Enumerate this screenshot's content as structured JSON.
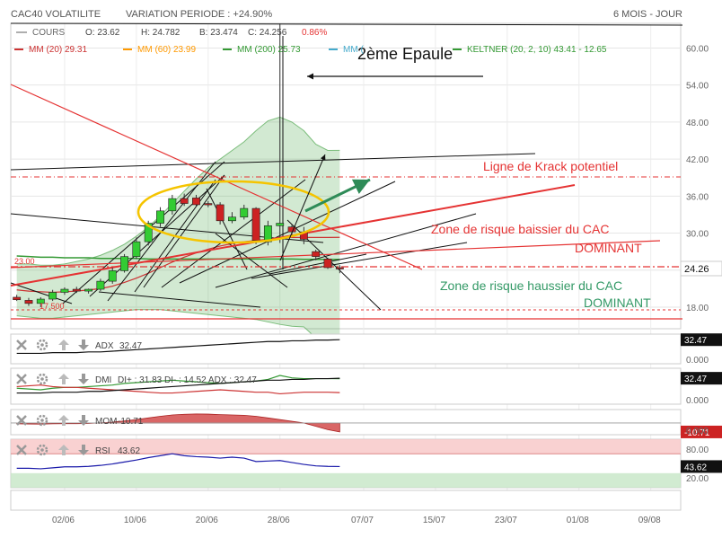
{
  "header": {
    "title": "CAC40 VOLATILITE",
    "variation_label": "VARIATION PERIODE : +24.90%",
    "period": "6 MOIS - JOUR"
  },
  "quote": {
    "cours_label": "COURS",
    "open": "O: 23.62",
    "high": "H: 24.782",
    "low": "B: 23.474",
    "close": "C: 24.256",
    "change": "0.86%"
  },
  "indicators": {
    "mm20": "MM (20) 29.31",
    "mm60": "MM (60) 23.99",
    "mm200": "MM (200) 25.73",
    "mm_extra": "MM (",
    "keltner": "KELTNER (20, 2, 10) 43.41 - 12.65"
  },
  "annotations": {
    "epaule": "2ème Epaule",
    "krack": "Ligne de Krack potentiel",
    "baissier_1": "Zone de risque baissier du CAC",
    "baissier_2": "DOMINANT",
    "haussier_1": "Zone de risque haussier du CAC",
    "haussier_2": "DOMINANT",
    "left_value": "23.00",
    "left_value2": "17.500"
  },
  "colors": {
    "up": "#33cc33",
    "down": "#cc2222",
    "mm20": "#cc3333",
    "mm60": "#ff9900",
    "mm200": "#339933",
    "keltner": "#339933",
    "annotation_red": "#e53333",
    "annotation_green": "#339966",
    "ellipse": "#f5c400"
  },
  "chart_data": [
    {
      "type": "candlestick",
      "name": "main",
      "ylim": [
        14.5,
        64
      ],
      "y_ticks": [
        18,
        24,
        30,
        36,
        42,
        48,
        54,
        60
      ],
      "y_tick_labels": [
        "18.00",
        "24.00",
        "30.00",
        "36.00",
        "42.00",
        "48.00",
        "54.00",
        "60.00"
      ],
      "last_price": 24.26,
      "last_price_label": "24.26",
      "x_labels": [
        "02/06",
        "10/06",
        "20/06",
        "28/06",
        "07/07",
        "15/07",
        "23/07",
        "01/08",
        "09/08"
      ],
      "x_label_index": [
        4,
        10,
        16,
        22,
        29,
        35,
        41,
        47,
        53
      ],
      "n_slots": 56,
      "candles": [
        {
          "o": 19.6,
          "h": 20.0,
          "l": 19.0,
          "c": 19.2
        },
        {
          "o": 19.1,
          "h": 19.5,
          "l": 18.2,
          "c": 18.6
        },
        {
          "o": 18.6,
          "h": 19.6,
          "l": 18.0,
          "c": 19.3
        },
        {
          "o": 19.3,
          "h": 20.8,
          "l": 19.0,
          "c": 20.4
        },
        {
          "o": 20.4,
          "h": 21.2,
          "l": 20.0,
          "c": 20.9
        },
        {
          "o": 20.9,
          "h": 21.3,
          "l": 20.3,
          "c": 20.6
        },
        {
          "o": 20.6,
          "h": 21.0,
          "l": 20.2,
          "c": 20.9
        },
        {
          "o": 20.9,
          "h": 22.6,
          "l": 20.6,
          "c": 22.2
        },
        {
          "o": 22.2,
          "h": 24.4,
          "l": 21.8,
          "c": 23.9
        },
        {
          "o": 23.9,
          "h": 26.6,
          "l": 23.6,
          "c": 26.2
        },
        {
          "o": 26.2,
          "h": 29.3,
          "l": 25.8,
          "c": 28.6
        },
        {
          "o": 28.6,
          "h": 32.0,
          "l": 28.0,
          "c": 31.6
        },
        {
          "o": 31.6,
          "h": 34.2,
          "l": 31.0,
          "c": 33.6
        },
        {
          "o": 33.6,
          "h": 36.2,
          "l": 33.0,
          "c": 35.6
        },
        {
          "o": 35.6,
          "h": 36.4,
          "l": 34.4,
          "c": 34.8
        },
        {
          "o": 35.7,
          "h": 36.2,
          "l": 34.3,
          "c": 34.6
        },
        {
          "o": 34.8,
          "h": 35.2,
          "l": 34.2,
          "c": 34.6
        },
        {
          "o": 34.6,
          "h": 35.0,
          "l": 31.4,
          "c": 32.0
        },
        {
          "o": 32.0,
          "h": 33.4,
          "l": 31.6,
          "c": 32.6
        },
        {
          "o": 32.6,
          "h": 34.6,
          "l": 32.2,
          "c": 34.0
        },
        {
          "o": 34.0,
          "h": 34.2,
          "l": 28.2,
          "c": 28.8
        },
        {
          "o": 28.6,
          "h": 32.0,
          "l": 28.0,
          "c": 31.2
        },
        {
          "o": 31.2,
          "h": 64.0,
          "l": 28.4,
          "c": 31.6
        },
        {
          "o": 31.0,
          "h": 31.4,
          "l": 29.4,
          "c": 30.2
        },
        {
          "o": 30.2,
          "h": 31.0,
          "l": 28.2,
          "c": 29.0
        },
        {
          "o": 27.0,
          "h": 27.3,
          "l": 25.6,
          "c": 26.2
        },
        {
          "o": 25.8,
          "h": 26.0,
          "l": 24.2,
          "c": 24.4
        },
        {
          "o": 24.4,
          "h": 24.8,
          "l": 23.5,
          "c": 24.26
        }
      ],
      "mm20": [
        20.8,
        20.6,
        20.5,
        20.4,
        20.5,
        20.6,
        20.8,
        21.0,
        21.4,
        22.0,
        22.7,
        23.5,
        24.4,
        25.3,
        26.1,
        26.8,
        27.4,
        27.9,
        28.3,
        28.6,
        28.8,
        29.0,
        29.2,
        29.3,
        29.3,
        29.3,
        29.3,
        29.31
      ],
      "mm200": [
        26.3,
        26.2,
        26.1,
        26.1,
        26.0,
        26.0,
        26.0,
        25.9,
        25.9,
        25.9,
        25.9,
        25.8,
        25.8,
        25.8,
        25.8,
        25.8,
        25.8,
        25.8,
        25.8,
        25.8,
        25.8,
        25.8,
        25.8,
        25.8,
        25.75,
        25.74,
        25.73,
        25.73
      ],
      "keltner_upper": [
        25.0,
        25.0,
        24.8,
        24.8,
        25.0,
        25.4,
        25.8,
        26.4,
        27.2,
        28.2,
        29.5,
        31.0,
        32.8,
        34.8,
        36.8,
        38.8,
        40.6,
        42.0,
        43.4,
        44.8,
        46.6,
        48.2,
        48.8,
        48.0,
        46.6,
        44.4,
        43.4,
        43.41
      ],
      "keltner_lower": [
        16.6,
        16.4,
        16.2,
        16.2,
        16.4,
        16.6,
        16.8,
        17.0,
        17.2,
        17.4,
        17.6,
        17.6,
        17.6,
        17.4,
        17.2,
        17.0,
        16.8,
        16.6,
        16.4,
        16.2,
        16.0,
        15.6,
        15.2,
        14.9,
        14.8,
        13.0,
        12.7,
        12.65
      ]
    },
    {
      "type": "line",
      "name": "ADX",
      "label": "ADX",
      "value_label": "32.47",
      "current": 32.47,
      "series": [
        {
          "name": "ADX",
          "values": [
            14,
            14,
            14,
            15,
            15,
            15,
            16,
            16,
            17,
            18,
            19,
            20,
            21,
            22,
            23,
            24,
            25,
            26,
            27,
            28,
            29,
            30,
            30,
            31,
            31,
            32,
            32,
            32.47
          ]
        }
      ],
      "ylim": [
        0,
        40
      ],
      "zero_label": "0.000"
    },
    {
      "type": "line",
      "name": "DMI",
      "label": "DMI",
      "legend": "DI+ : 31.83 DI- : 14.52 ADX : 32.47",
      "value_label": "32.47",
      "zero_label": "0.000",
      "ylim": [
        0,
        45
      ],
      "series": [
        {
          "name": "DI+",
          "values": [
            20,
            19,
            18,
            20,
            21,
            21,
            22,
            23,
            24,
            26,
            27,
            28,
            29,
            30,
            29,
            28,
            27,
            26,
            27,
            28,
            29,
            31,
            36,
            33,
            32,
            32,
            32,
            31.83
          ]
        },
        {
          "name": "DI-",
          "values": [
            22,
            23,
            24,
            22,
            21,
            21,
            20,
            19,
            18,
            17,
            16,
            15,
            14,
            14,
            15,
            16,
            17,
            18,
            17,
            16,
            15,
            15,
            13,
            14,
            15,
            15,
            15,
            14.52
          ]
        },
        {
          "name": "ADX",
          "values": [
            14,
            14,
            14,
            15,
            15,
            15,
            16,
            16,
            17,
            18,
            19,
            20,
            21,
            22,
            23,
            24,
            25,
            26,
            27,
            28,
            29,
            30,
            30,
            31,
            31,
            32,
            32,
            32.47
          ]
        }
      ]
    },
    {
      "type": "area",
      "name": "MOM",
      "label": "MOM",
      "legend": "-10.71",
      "value_label": "-10.71",
      "zero_label": "0.000",
      "ylim": [
        -14,
        16
      ],
      "series": [
        {
          "name": "MOM",
          "values": [
            -1.0,
            -1.2,
            -1.4,
            -1.0,
            -0.8,
            -0.8,
            -0.6,
            0.2,
            1.0,
            2.4,
            4.0,
            6.0,
            8.0,
            9.6,
            10.4,
            10.8,
            10.6,
            10.0,
            9.6,
            9.2,
            8.0,
            6.0,
            4.0,
            2.0,
            0.0,
            -4.0,
            -8.0,
            -10.71
          ]
        }
      ]
    },
    {
      "type": "line",
      "name": "RSI",
      "label": "RSI",
      "legend": "43.62",
      "value_label": "43.62",
      "y_tick_labels": [
        "80.00",
        "20.00"
      ],
      "ylim": [
        0,
        100
      ],
      "series": [
        {
          "name": "RSI",
          "values": [
            40,
            40,
            39,
            41,
            43,
            43,
            44,
            46,
            49,
            53,
            57,
            62,
            66,
            70,
            66,
            64,
            63,
            61,
            63,
            61,
            54,
            55,
            56,
            52,
            48,
            45,
            44,
            43.62
          ]
        }
      ]
    }
  ]
}
